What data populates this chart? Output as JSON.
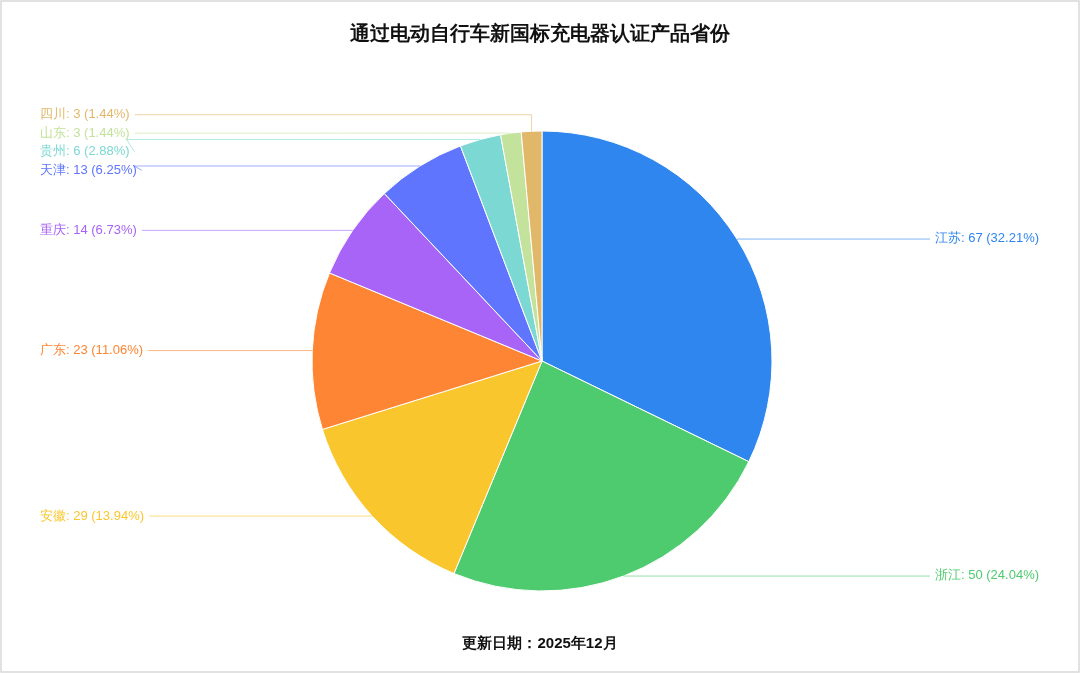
{
  "chart_data": {
    "type": "pie",
    "title": "通过电动自行车新国标充电器认证产品省份",
    "categories": [
      "江苏",
      "浙江",
      "安徽",
      "广东",
      "重庆",
      "天津",
      "贵州",
      "山东",
      "四川"
    ],
    "values": [
      67,
      50,
      29,
      23,
      14,
      13,
      6,
      3,
      3
    ],
    "colors": [
      "#2f86ee",
      "#4fcb6f",
      "#fac62e",
      "#fe8533",
      "#a863f7",
      "#5f75fe",
      "#7bd8d3",
      "#c3e29c",
      "#e1b76a"
    ],
    "value_labels": [
      "67 (32.21%)",
      "50 (24.04%)",
      "29 (13.94%)",
      "23 (11.06%)",
      "14 (6.73%)",
      "13 (6.25%)",
      "6 (2.88%)",
      "3 (1.44%)",
      "3 (1.44%)"
    ],
    "annotations": [
      "更新日期：2025年12月"
    ]
  }
}
